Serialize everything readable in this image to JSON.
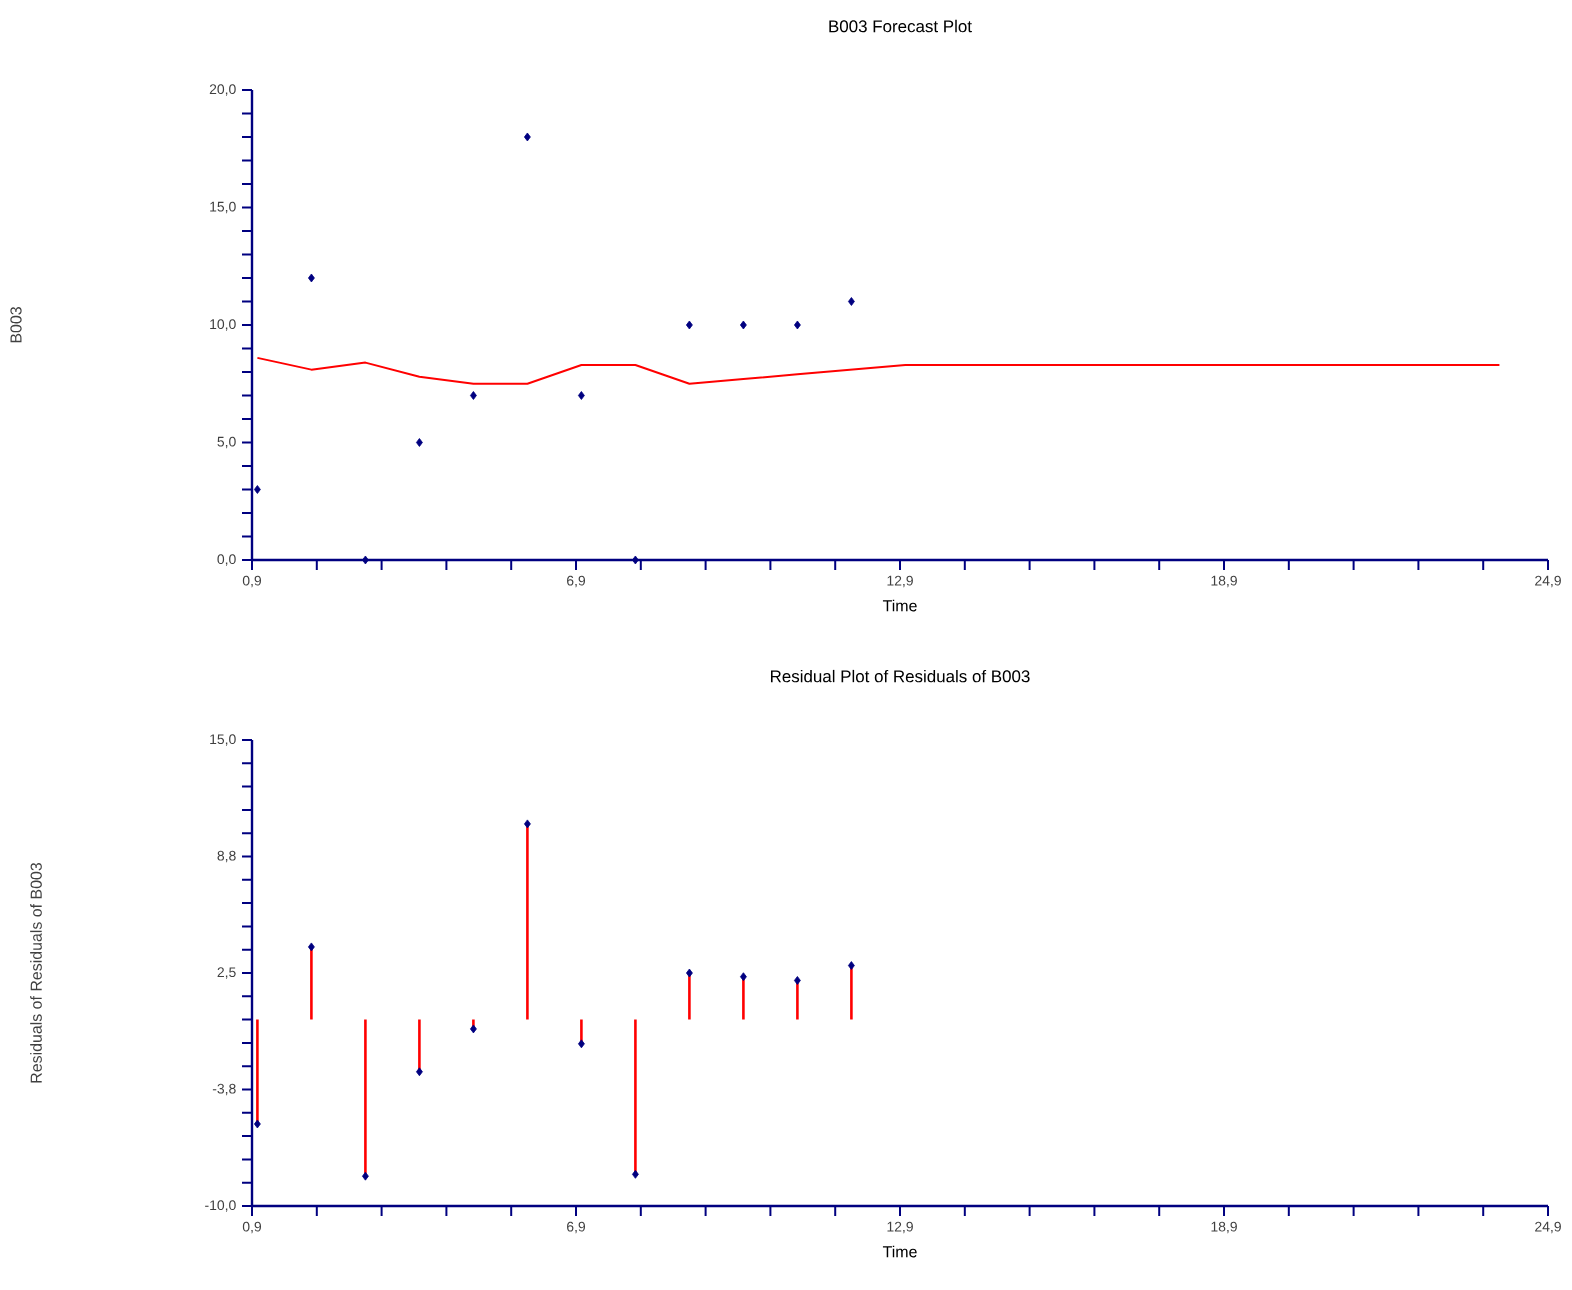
{
  "chart_data": [
    {
      "type": "line",
      "title": "B003 Forecast Plot",
      "xlabel": "Time",
      "ylabel": "B003",
      "xlim": [
        0.9,
        24.9
      ],
      "ylim": [
        0,
        20
      ],
      "xticks": [
        {
          "value": 0.9,
          "label": "0,9"
        },
        {
          "value": 6.9,
          "label": "6,9"
        },
        {
          "value": 12.9,
          "label": "12,9"
        },
        {
          "value": 18.9,
          "label": "18,9"
        },
        {
          "value": 24.9,
          "label": "24,9"
        }
      ],
      "yticks": [
        {
          "value": 0,
          "label": "0,0"
        },
        {
          "value": 5,
          "label": "5,0"
        },
        {
          "value": 10,
          "label": "10,0"
        },
        {
          "value": 15,
          "label": "15,0"
        },
        {
          "value": 20,
          "label": "20,0"
        }
      ],
      "series": [
        {
          "type": "scatter",
          "color": "#000080",
          "marker": "diamond",
          "x": [
            1,
            2,
            3,
            4,
            5,
            6,
            7,
            8,
            9,
            10,
            11,
            12
          ],
          "values": [
            3,
            12,
            0,
            5,
            7,
            18,
            7,
            0,
            10,
            10,
            10,
            11
          ]
        },
        {
          "type": "line",
          "color": "#ff0000",
          "marker": "none",
          "x": [
            1,
            2,
            3,
            4,
            5,
            6,
            7,
            8,
            9,
            10,
            11,
            12,
            13,
            14,
            15,
            16,
            17,
            18,
            19,
            20,
            21,
            22,
            23,
            24
          ],
          "values": [
            8.6,
            8.1,
            8.4,
            7.8,
            7.5,
            7.5,
            8.3,
            8.3,
            7.5,
            7.7,
            7.9,
            8.1,
            8.3,
            8.3,
            8.3,
            8.3,
            8.3,
            8.3,
            8.3,
            8.3,
            8.3,
            8.3,
            8.3,
            8.3
          ]
        }
      ]
    },
    {
      "type": "lollipop",
      "title": "Residual Plot of Residuals of B003",
      "xlabel": "Time",
      "ylabel": "Residuals of Residuals of B003",
      "xlim": [
        0.9,
        24.9
      ],
      "ylim": [
        -10,
        15
      ],
      "xticks": [
        {
          "value": 0.9,
          "label": "0,9"
        },
        {
          "value": 6.9,
          "label": "6,9"
        },
        {
          "value": 12.9,
          "label": "12,9"
        },
        {
          "value": 18.9,
          "label": "18,9"
        },
        {
          "value": 24.9,
          "label": "24,9"
        }
      ],
      "yticks": [
        {
          "value": -10,
          "label": "-10,0"
        },
        {
          "value": -3.75,
          "label": "-3,8"
        },
        {
          "value": 2.5,
          "label": "2,5"
        },
        {
          "value": 8.75,
          "label": "8,8"
        },
        {
          "value": 15,
          "label": "15,0"
        }
      ],
      "series": [
        {
          "color": "#000080",
          "marker": "diamond",
          "x": [
            1,
            2,
            3,
            4,
            5,
            6,
            7,
            8,
            9,
            10,
            11,
            12
          ],
          "values": [
            -5.6,
            3.9,
            -8.4,
            -2.8,
            -0.5,
            10.5,
            -1.3,
            -8.3,
            2.5,
            2.3,
            2.1,
            2.9
          ]
        }
      ]
    }
  ]
}
